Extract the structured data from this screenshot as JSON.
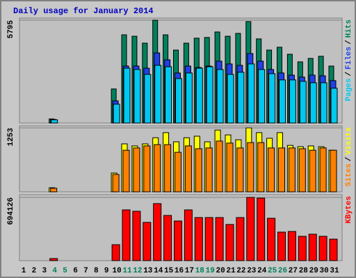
{
  "chart_data": {
    "type": "bar",
    "title": "Daily usage for January 2014",
    "categories": [
      "1",
      "2",
      "3",
      "4",
      "5",
      "6",
      "7",
      "8",
      "9",
      "10",
      "11",
      "12",
      "13",
      "14",
      "15",
      "16",
      "17",
      "18",
      "19",
      "20",
      "21",
      "22",
      "23",
      "24",
      "25",
      "26",
      "27",
      "28",
      "29",
      "30",
      "31"
    ],
    "label_colors": [
      "#000000",
      "#000000",
      "#000000",
      "#00805c",
      "#00805c",
      "#000000",
      "#000000",
      "#000000",
      "#000000",
      "#000000",
      "#00805c",
      "#00805c",
      "#000000",
      "#000000",
      "#000000",
      "#000000",
      "#000000",
      "#00805c",
      "#00805c",
      "#000000",
      "#000000",
      "#000000",
      "#000000",
      "#000000",
      "#00805c",
      "#00805c",
      "#000000",
      "#000000",
      "#000000",
      "#000000",
      "#000000"
    ],
    "legend_separator": "/",
    "panels": [
      {
        "ylim": [
          0,
          5795
        ],
        "yticks": [
          5795
        ],
        "series": [
          {
            "name": "Hits",
            "color": "#00805c",
            "values": [
              0,
              0,
              0,
              230,
              0,
              0,
              0,
              0,
              0,
              1920,
              4970,
              4890,
              4500,
              5795,
              4970,
              4110,
              4500,
              4780,
              4820,
              5130,
              4890,
              5050,
              5715,
              4740,
              4110,
              4270,
              3875,
              3445,
              3640,
              3760,
              3210
            ]
          },
          {
            "name": "Files",
            "color": "#2040e8",
            "values": [
              0,
              0,
              0,
              200,
              0,
              0,
              0,
              0,
              0,
              1250,
              3210,
              3210,
              3090,
              3950,
              3560,
              2820,
              3210,
              3130,
              3210,
              3485,
              3330,
              3250,
              3915,
              3485,
              3015,
              2820,
              2700,
              2585,
              2700,
              2660,
              2390
            ]
          },
          {
            "name": "Pages",
            "color": "#00c8f0",
            "values": [
              0,
              0,
              0,
              180,
              0,
              0,
              0,
              0,
              0,
              1060,
              3090,
              3015,
              2740,
              3250,
              3170,
              2505,
              2820,
              3090,
              3170,
              3015,
              2740,
              2860,
              3330,
              3015,
              2780,
              2430,
              2430,
              2350,
              2270,
              2270,
              1960
            ]
          }
        ]
      },
      {
        "ylim": [
          0,
          1253
        ],
        "yticks": [
          1253
        ],
        "series": [
          {
            "name": "Visits",
            "color": "#ffff00",
            "values": [
              0,
              0,
              0,
              80,
              0,
              0,
              0,
              0,
              0,
              368,
              940,
              900,
              940,
              1060,
              1160,
              980,
              1060,
              1090,
              980,
              1210,
              1115,
              1020,
              1253,
              1160,
              1050,
              1160,
              910,
              885,
              900,
              885,
              815
            ]
          },
          {
            "name": "Sites",
            "color": "#ff8000",
            "values": [
              0,
              0,
              0,
              70,
              0,
              0,
              0,
              0,
              0,
              340,
              815,
              860,
              900,
              925,
              925,
              775,
              900,
              845,
              860,
              995,
              955,
              860,
              965,
              965,
              860,
              860,
              860,
              845,
              815,
              860,
              815
            ]
          }
        ]
      },
      {
        "ylim": [
          0,
          694126
        ],
        "yticks": [
          694126
        ],
        "series": [
          {
            "name": "KBytes",
            "color": "#ff0000",
            "values": [
              0,
              0,
              0,
              23000,
              0,
              0,
              0,
              0,
              0,
              175000,
              557000,
              542000,
              420000,
              626000,
              496000,
              435000,
              557000,
              473000,
              473000,
              473000,
              397000,
              473000,
              694126,
              686000,
              465000,
              313000,
              320000,
              267000,
              290000,
              267000,
              236000
            ]
          }
        ]
      }
    ]
  }
}
